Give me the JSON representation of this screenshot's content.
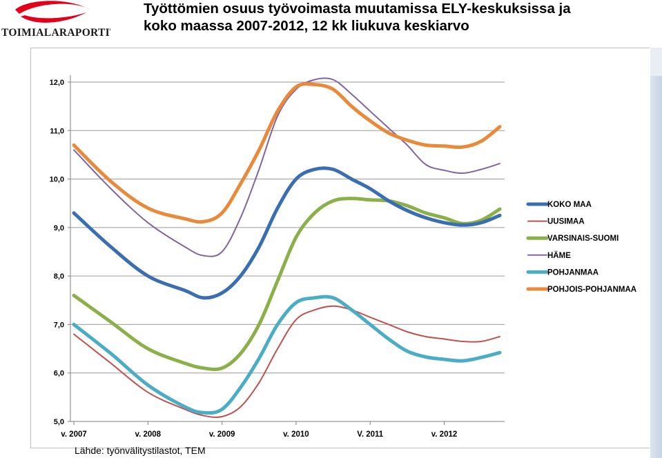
{
  "logo": {
    "text": "TOIMIALARAPORTIT",
    "swoosh_color": "#e2001a"
  },
  "title_line1": "Työttömien osuus työvoimasta muutamissa ELY-keskuksissa ja",
  "title_line2": "koko maassa 2007-2012, 12 kk liukuva keskiarvo",
  "source": "Lähde: työnvälitystilastot, TEM",
  "chart_data": {
    "type": "line",
    "title": "",
    "xlabel": "",
    "ylabel": "",
    "ylim": [
      5.0,
      12.0
    ],
    "yticks": [
      5.0,
      6.0,
      7.0,
      8.0,
      9.0,
      10.0,
      11.0,
      12.0
    ],
    "ytick_labels": [
      "5,0",
      "6,0",
      "7,0",
      "8,0",
      "9,0",
      "10,0",
      "11,0",
      "12,0"
    ],
    "xticks": [
      {
        "label": "v. 2007",
        "x": 0
      },
      {
        "label": "v. 2008",
        "x": 12
      },
      {
        "label": "v. 2009",
        "x": 24
      },
      {
        "label": "v. 2010",
        "x": 36
      },
      {
        "label": "V. 2011",
        "x": 48
      },
      {
        "label": "v. 2012",
        "x": 60
      }
    ],
    "xlim": [
      0,
      69
    ],
    "grid": "horizontal",
    "legend_position": "right",
    "series": [
      {
        "name": "KOKO MAA",
        "color": "#3a6eb0",
        "width": 5,
        "values": [
          [
            0,
            9.3
          ],
          [
            6,
            8.6
          ],
          [
            12,
            8.0
          ],
          [
            18,
            7.7
          ],
          [
            21,
            7.55
          ],
          [
            24,
            7.65
          ],
          [
            27,
            8.0
          ],
          [
            30,
            8.6
          ],
          [
            33,
            9.4
          ],
          [
            36,
            10.0
          ],
          [
            39,
            10.2
          ],
          [
            42,
            10.2
          ],
          [
            45,
            10.0
          ],
          [
            48,
            9.8
          ],
          [
            51,
            9.55
          ],
          [
            54,
            9.35
          ],
          [
            57,
            9.2
          ],
          [
            60,
            9.1
          ],
          [
            63,
            9.05
          ],
          [
            66,
            9.1
          ],
          [
            69,
            9.25
          ]
        ]
      },
      {
        "name": "UUSIMAA",
        "color": "#c0504d",
        "width": 2,
        "values": [
          [
            0,
            6.8
          ],
          [
            6,
            6.2
          ],
          [
            12,
            5.6
          ],
          [
            18,
            5.25
          ],
          [
            21,
            5.12
          ],
          [
            24,
            5.1
          ],
          [
            27,
            5.3
          ],
          [
            30,
            5.8
          ],
          [
            33,
            6.5
          ],
          [
            36,
            7.1
          ],
          [
            39,
            7.3
          ],
          [
            42,
            7.38
          ],
          [
            45,
            7.3
          ],
          [
            48,
            7.15
          ],
          [
            51,
            7.0
          ],
          [
            54,
            6.85
          ],
          [
            57,
            6.75
          ],
          [
            60,
            6.7
          ],
          [
            63,
            6.65
          ],
          [
            66,
            6.65
          ],
          [
            69,
            6.75
          ]
        ]
      },
      {
        "name": "VARSINAIS-SUOMI",
        "color": "#8bb04a",
        "width": 5,
        "values": [
          [
            0,
            7.6
          ],
          [
            6,
            7.05
          ],
          [
            12,
            6.5
          ],
          [
            18,
            6.2
          ],
          [
            21,
            6.1
          ],
          [
            24,
            6.1
          ],
          [
            27,
            6.4
          ],
          [
            30,
            7.0
          ],
          [
            33,
            7.9
          ],
          [
            36,
            8.8
          ],
          [
            39,
            9.3
          ],
          [
            42,
            9.55
          ],
          [
            45,
            9.6
          ],
          [
            48,
            9.57
          ],
          [
            51,
            9.55
          ],
          [
            54,
            9.45
          ],
          [
            57,
            9.3
          ],
          [
            60,
            9.2
          ],
          [
            63,
            9.08
          ],
          [
            66,
            9.15
          ],
          [
            69,
            9.38
          ]
        ]
      },
      {
        "name": "HÄME",
        "color": "#8064a2",
        "width": 2,
        "values": [
          [
            0,
            10.6
          ],
          [
            6,
            9.8
          ],
          [
            12,
            9.1
          ],
          [
            18,
            8.6
          ],
          [
            21,
            8.42
          ],
          [
            24,
            8.5
          ],
          [
            27,
            9.2
          ],
          [
            30,
            10.2
          ],
          [
            33,
            11.3
          ],
          [
            36,
            11.85
          ],
          [
            39,
            12.05
          ],
          [
            42,
            12.05
          ],
          [
            45,
            11.75
          ],
          [
            48,
            11.4
          ],
          [
            51,
            11.05
          ],
          [
            54,
            10.7
          ],
          [
            57,
            10.3
          ],
          [
            60,
            10.18
          ],
          [
            63,
            10.12
          ],
          [
            66,
            10.2
          ],
          [
            69,
            10.32
          ]
        ]
      },
      {
        "name": "POHJANMAA",
        "color": "#4bacc6",
        "width": 5,
        "values": [
          [
            0,
            7.0
          ],
          [
            6,
            6.4
          ],
          [
            12,
            5.75
          ],
          [
            18,
            5.3
          ],
          [
            21,
            5.18
          ],
          [
            24,
            5.25
          ],
          [
            27,
            5.7
          ],
          [
            30,
            6.3
          ],
          [
            33,
            7.0
          ],
          [
            36,
            7.45
          ],
          [
            39,
            7.55
          ],
          [
            42,
            7.55
          ],
          [
            45,
            7.3
          ],
          [
            48,
            7.0
          ],
          [
            51,
            6.7
          ],
          [
            54,
            6.45
          ],
          [
            57,
            6.33
          ],
          [
            60,
            6.28
          ],
          [
            63,
            6.25
          ],
          [
            66,
            6.32
          ],
          [
            69,
            6.42
          ]
        ]
      },
      {
        "name": "POHJOIS-POHJANMAA",
        "color": "#e88a3a",
        "width": 5,
        "values": [
          [
            0,
            10.7
          ],
          [
            6,
            9.95
          ],
          [
            12,
            9.4
          ],
          [
            18,
            9.18
          ],
          [
            21,
            9.12
          ],
          [
            24,
            9.3
          ],
          [
            27,
            9.9
          ],
          [
            30,
            10.6
          ],
          [
            33,
            11.4
          ],
          [
            36,
            11.9
          ],
          [
            39,
            11.95
          ],
          [
            42,
            11.85
          ],
          [
            45,
            11.5
          ],
          [
            48,
            11.2
          ],
          [
            51,
            10.95
          ],
          [
            54,
            10.8
          ],
          [
            57,
            10.7
          ],
          [
            60,
            10.68
          ],
          [
            63,
            10.66
          ],
          [
            66,
            10.78
          ],
          [
            69,
            11.08
          ]
        ]
      }
    ]
  }
}
